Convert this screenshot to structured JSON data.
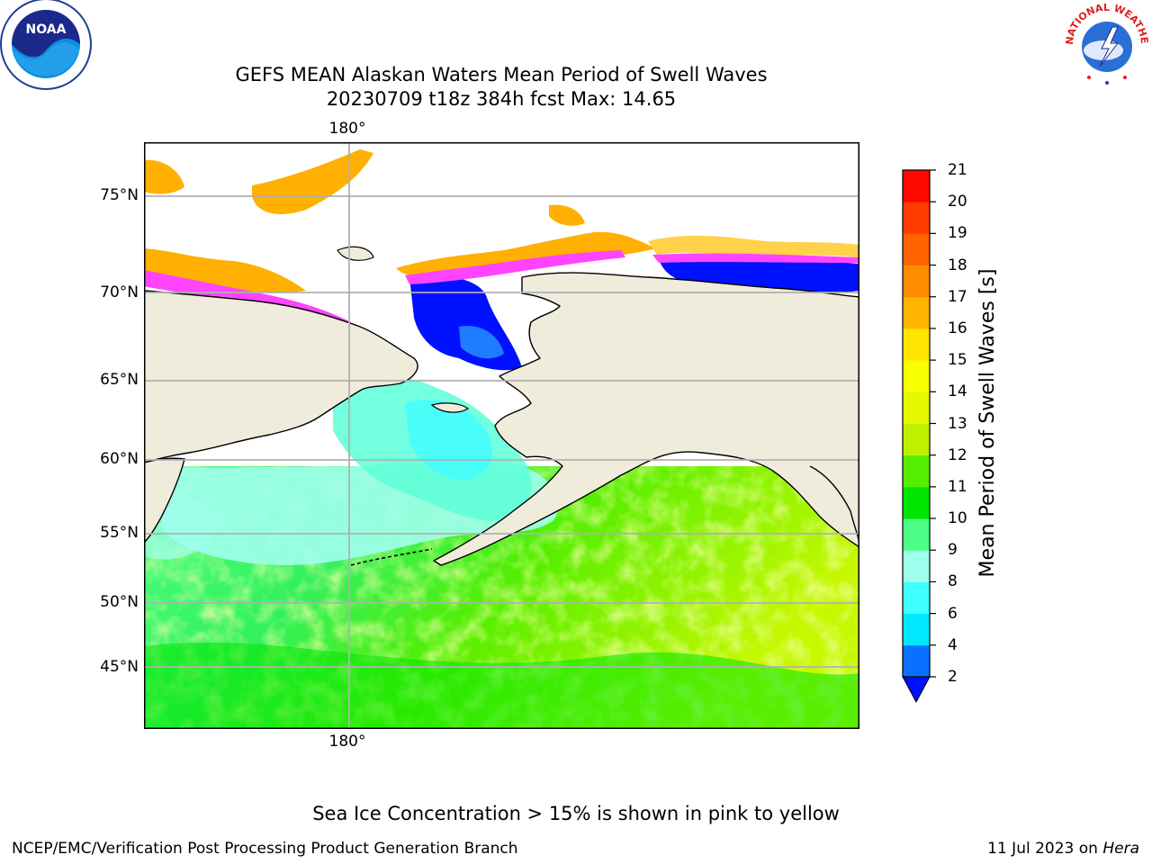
{
  "title_line1": "GEFS MEAN Alaskan Waters Mean Period of Swell Waves",
  "title_line2": "20230709 t18z 384h fcst   Max: 14.65",
  "map": {
    "lon_label_top": "180°",
    "lon_label_bottom": "180°",
    "lat_labels": [
      "75°N",
      "70°N",
      "65°N",
      "60°N",
      "55°N",
      "50°N",
      "45°N"
    ],
    "colors": {
      "land": "#efecdc",
      "ice_white": "#ffffff",
      "ice_pink": "#ff44ff",
      "ice_orange": "#ffb000",
      "ice_yellow": "#ffd24a",
      "deep_blue": "#0011ff",
      "grid": "#b0b0b0"
    }
  },
  "colorbar": {
    "title": "Mean Period of Swell Waves [s]",
    "ticks": [
      "21",
      "20",
      "19",
      "18",
      "17",
      "16",
      "15",
      "14",
      "13",
      "12",
      "11",
      "10",
      "9",
      "8",
      "6",
      "4",
      "2"
    ],
    "colors_bottom_to_top": [
      "#0a70ff",
      "#00e8ff",
      "#40ffff",
      "#9effec",
      "#4cff86",
      "#00e600",
      "#56ee00",
      "#bff000",
      "#e5f800",
      "#f8ff00",
      "#ffe600",
      "#ffb400",
      "#ff8c00",
      "#ff6400",
      "#ff3c00",
      "#ff0800"
    ],
    "extend_color": "#0011ff"
  },
  "footnote": "Sea Ice Concentration > 15% is shown in pink to yellow",
  "credit_left": "NCEP/EMC/Verification Post Processing Product Generation Branch",
  "credit_date": "11 Jul 2023 on ",
  "credit_machine": "Hera",
  "logos": {
    "noaa_text": "NOAA",
    "nws_text": "NATIONAL WEATHER SERVICE"
  }
}
